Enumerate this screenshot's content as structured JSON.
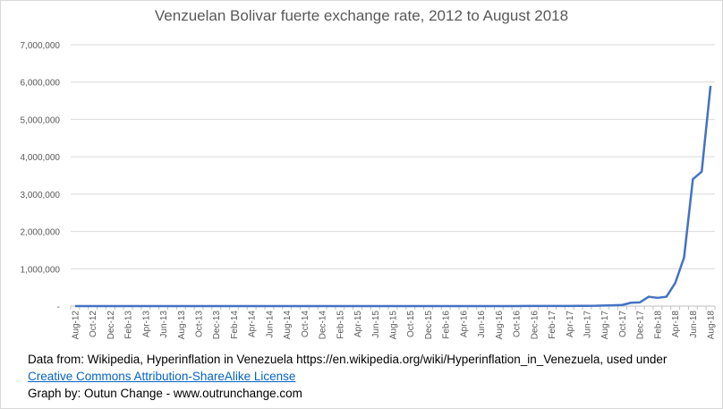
{
  "chart_data": {
    "type": "line",
    "title": "Venzuelan Bolivar fuerte exchange rate, 2012 to August 2018",
    "categories": [
      "Aug-12",
      null,
      "Oct-12",
      null,
      "Dec-12",
      null,
      "Feb-13",
      null,
      "Apr-13",
      null,
      "Jun-13",
      null,
      "Aug-13",
      null,
      "Oct-13",
      null,
      "Dec-13",
      null,
      "Feb-14",
      null,
      "Apr-14",
      null,
      "Jun-14",
      null,
      "Aug-14",
      null,
      "Oct-14",
      null,
      "Dec-14",
      null,
      "Feb-15",
      null,
      "Apr-15",
      null,
      "Jun-15",
      null,
      "Aug-15",
      null,
      "Oct-15",
      null,
      "Dec-15",
      null,
      "Feb-16",
      null,
      "Apr-16",
      null,
      "Jun-16",
      null,
      "Aug-16",
      null,
      "Oct-16",
      null,
      "Dec-16",
      null,
      "Feb-17",
      null,
      "Apr-17",
      null,
      "Jun-17",
      null,
      "Aug-17",
      null,
      "Oct-17",
      null,
      "Dec-17",
      null,
      "Feb-18",
      null,
      "Apr-18",
      null,
      "Jun-18",
      null,
      "Aug-18"
    ],
    "series": [
      {
        "color": "#4472c4",
        "values": [
          11,
          12,
          13,
          15,
          17,
          18,
          20,
          22,
          25,
          28,
          32,
          35,
          40,
          45,
          50,
          55,
          60,
          65,
          70,
          75,
          80,
          85,
          90,
          95,
          100,
          110,
          130,
          150,
          170,
          180,
          190,
          210,
          260,
          280,
          400,
          600,
          700,
          750,
          800,
          850,
          900,
          1000,
          1100,
          1100,
          1150,
          1000,
          1000,
          1000,
          1000,
          1100,
          1400,
          1800,
          3000,
          3200,
          3400,
          3500,
          4000,
          5000,
          6000,
          8000,
          15000,
          20000,
          30000,
          90000,
          100000,
          250000,
          220000,
          250000,
          620000,
          1300000,
          3400000,
          3600000,
          5900000
        ]
      }
    ],
    "ylim": [
      0,
      7000000
    ],
    "yticks": [
      {
        "value": 0,
        "label": "-"
      },
      {
        "value": 1000000,
        "label": "1,000,000"
      },
      {
        "value": 2000000,
        "label": "2,000,000"
      },
      {
        "value": 3000000,
        "label": "3,000,000"
      },
      {
        "value": 4000000,
        "label": "4,000,000"
      },
      {
        "value": 5000000,
        "label": "5,000,000"
      },
      {
        "value": 6000000,
        "label": "6,000,000"
      },
      {
        "value": 7000000,
        "label": "7,000,000"
      }
    ],
    "grid": true
  },
  "notes": {
    "source": "Data from: Wikipedia, Hyperinflation in Venezuela https://en.wikipedia.org/wiki/Hyperinflation_in_Venezuela, used under",
    "license": "Creative Commons Attribution-ShareAlike License",
    "credit": "Graph by: Outun Change - www.outrunchange.com"
  }
}
